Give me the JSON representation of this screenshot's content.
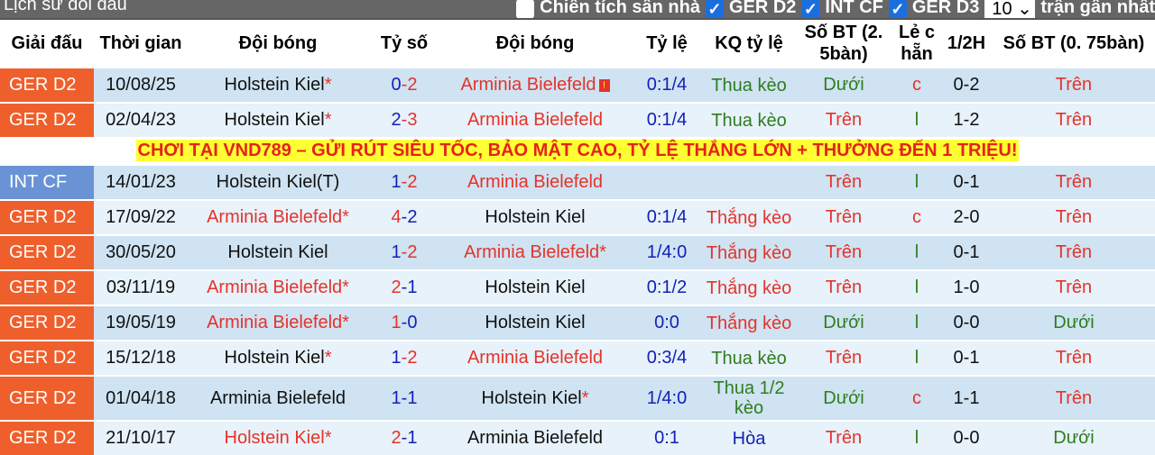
{
  "header": {
    "title": "Lịch sử đối đầu",
    "filters": [
      {
        "label": "Chiến tích sân nhà",
        "checked": false
      },
      {
        "label": "GER D2",
        "checked": true
      },
      {
        "label": "INT CF",
        "checked": true
      },
      {
        "label": "GER D3",
        "checked": true
      }
    ],
    "count": "10",
    "count_suffix": "trận gần nhất"
  },
  "columns": [
    "Giải đấu",
    "Thời gian",
    "Đội bóng",
    "Tỷ số",
    "Đội bóng",
    "Tỷ lệ",
    "KQ tỷ lệ",
    "Số BT (2. 5bàn)",
    "Lẻ c hẵn",
    "1/2H",
    "Số BT (0. 75bàn)"
  ],
  "ad": "CHƠI TẠI VND789 – GỬI RÚT SIÊU TỐC, BẢO MẬT CAO, TỶ LỆ THẮNG LỚN + THƯỞNG ĐẾN 1 TRIỆU!",
  "colors": {
    "league_ger": "#ee5f2c",
    "league_int": "#6a93d5",
    "win": "#e5332a",
    "lose": "#1420b8",
    "green": "#2e7d1e"
  },
  "rows": [
    {
      "league": "GER D2",
      "date": "10/08/25",
      "home": "Holstein Kiel",
      "home_star": "*",
      "home_red": false,
      "h": "0",
      "a": "2",
      "away": "Arminia Bielefeld",
      "away_star": "",
      "away_red": true,
      "flag": "!",
      "odds": "0:1/4",
      "result": "Thua kèo",
      "rc": "green",
      "ou": "Dưới",
      "ouc": "green",
      "oe": "c",
      "oec": "red",
      "ht": "0-2",
      "ou2": "Trên",
      "ou2c": "red"
    },
    {
      "league": "GER D2",
      "date": "02/04/23",
      "home": "Holstein Kiel",
      "home_star": "*",
      "home_red": false,
      "h": "2",
      "a": "3",
      "away": "Arminia Bielefeld",
      "away_star": "",
      "away_red": true,
      "odds": "0:1/4",
      "result": "Thua kèo",
      "rc": "green",
      "ou": "Trên",
      "ouc": "red",
      "oe": "l",
      "oec": "green",
      "ht": "1-2",
      "ou2": "Trên",
      "ou2c": "red"
    },
    {
      "ad": true
    },
    {
      "league": "INT CF",
      "date": "14/01/23",
      "home": "Holstein Kiel(T)",
      "home_star": "",
      "home_red": false,
      "h": "1",
      "a": "2",
      "away": "Arminia Bielefeld",
      "away_star": "",
      "away_red": true,
      "odds": "",
      "result": "",
      "rc": "green",
      "ou": "Trên",
      "ouc": "red",
      "oe": "l",
      "oec": "green",
      "ht": "0-1",
      "ou2": "Trên",
      "ou2c": "red"
    },
    {
      "league": "GER D2",
      "date": "17/09/22",
      "home": "Arminia Bielefeld",
      "home_star": "*",
      "home_red": true,
      "h": "4",
      "a": "2",
      "away": "Holstein Kiel",
      "away_star": "",
      "away_red": false,
      "odds": "0:1/4",
      "result": "Thắng kèo",
      "rc": "red",
      "ou": "Trên",
      "ouc": "red",
      "oe": "c",
      "oec": "red",
      "ht": "2-0",
      "ou2": "Trên",
      "ou2c": "red"
    },
    {
      "league": "GER D2",
      "date": "30/05/20",
      "home": "Holstein Kiel",
      "home_star": "",
      "home_red": false,
      "h": "1",
      "a": "2",
      "away": "Arminia Bielefeld",
      "away_star": "*",
      "away_red": true,
      "odds": "1/4:0",
      "result": "Thắng kèo",
      "rc": "red",
      "ou": "Trên",
      "ouc": "red",
      "oe": "l",
      "oec": "green",
      "ht": "0-1",
      "ou2": "Trên",
      "ou2c": "red"
    },
    {
      "league": "GER D2",
      "date": "03/11/19",
      "home": "Arminia Bielefeld",
      "home_star": "*",
      "home_red": true,
      "h": "2",
      "a": "1",
      "away": "Holstein Kiel",
      "away_star": "",
      "away_red": false,
      "odds": "0:1/2",
      "result": "Thắng kèo",
      "rc": "red",
      "ou": "Trên",
      "ouc": "red",
      "oe": "l",
      "oec": "green",
      "ht": "1-0",
      "ou2": "Trên",
      "ou2c": "red"
    },
    {
      "league": "GER D2",
      "date": "19/05/19",
      "home": "Arminia Bielefeld",
      "home_star": "*",
      "home_red": true,
      "h": "1",
      "a": "0",
      "away": "Holstein Kiel",
      "away_star": "",
      "away_red": false,
      "odds": "0:0",
      "result": "Thắng kèo",
      "rc": "red",
      "ou": "Dưới",
      "ouc": "green",
      "oe": "l",
      "oec": "green",
      "ht": "0-0",
      "ou2": "Dưới",
      "ou2c": "green"
    },
    {
      "league": "GER D2",
      "date": "15/12/18",
      "home": "Holstein Kiel",
      "home_star": "*",
      "home_red": false,
      "h": "1",
      "a": "2",
      "away": "Arminia Bielefeld",
      "away_star": "",
      "away_red": true,
      "odds": "0:3/4",
      "result": "Thua kèo",
      "rc": "green",
      "ou": "Trên",
      "ouc": "red",
      "oe": "l",
      "oec": "green",
      "ht": "0-1",
      "ou2": "Trên",
      "ou2c": "red"
    },
    {
      "league": "GER D2",
      "date": "01/04/18",
      "home": "Arminia Bielefeld",
      "home_star": "",
      "home_red": false,
      "h": "1",
      "a": "1",
      "away": "Holstein Kiel",
      "away_star": "*",
      "away_red": false,
      "odds": "1/4:0",
      "result": "Thua 1/2 kèo",
      "rc": "green",
      "ou": "Dưới",
      "ouc": "green",
      "oe": "c",
      "oec": "red",
      "ht": "1-1",
      "ou2": "Trên",
      "ou2c": "red"
    },
    {
      "league": "GER D2",
      "date": "21/10/17",
      "home": "Holstein Kiel",
      "home_star": "*",
      "home_red": true,
      "h": "2",
      "a": "1",
      "away": "Arminia Bielefeld",
      "away_star": "",
      "away_red": false,
      "odds": "0:1",
      "result": "Hòa",
      "rc": "blue",
      "ou": "Trên",
      "ouc": "red",
      "oe": "l",
      "oec": "green",
      "ht": "0-0",
      "ou2": "Dưới",
      "ou2c": "green"
    }
  ]
}
